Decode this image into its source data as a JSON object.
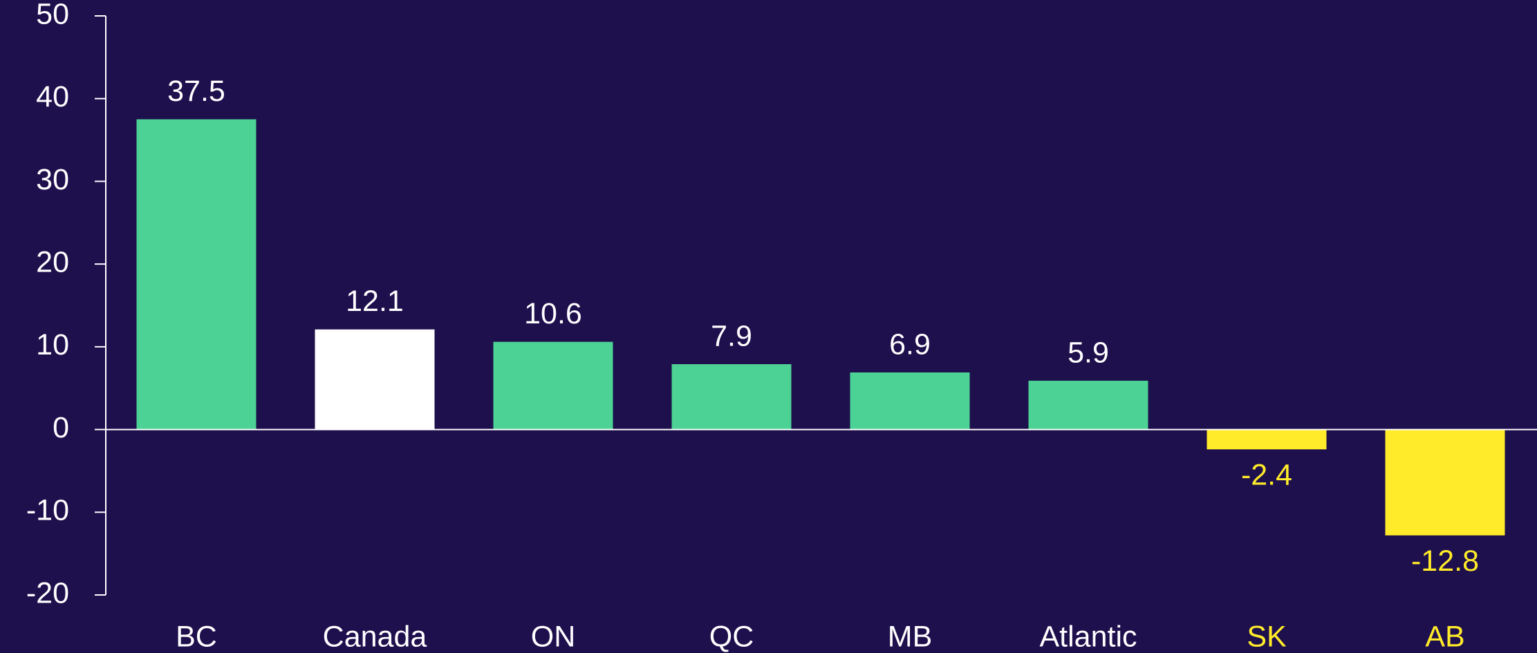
{
  "chart_data": {
    "type": "bar",
    "categories": [
      "BC",
      "Canada",
      "ON",
      "QC",
      "MB",
      "Atlantic",
      "SK",
      "AB"
    ],
    "values": [
      37.5,
      12.1,
      10.6,
      7.9,
      6.9,
      5.9,
      -2.4,
      -12.8
    ],
    "colors": [
      "#4cd294",
      "#ffffff",
      "#4cd294",
      "#4cd294",
      "#4cd294",
      "#4cd294",
      "#ffeb2a",
      "#ffeb2a"
    ],
    "label_colors": [
      "#ffffff",
      "#ffffff",
      "#ffffff",
      "#ffffff",
      "#ffffff",
      "#ffffff",
      "#ffeb2a",
      "#ffeb2a"
    ],
    "ylim": [
      -20,
      50
    ],
    "yticks": [
      -20,
      -10,
      0,
      10,
      20,
      30,
      40,
      50
    ],
    "grid": false
  }
}
